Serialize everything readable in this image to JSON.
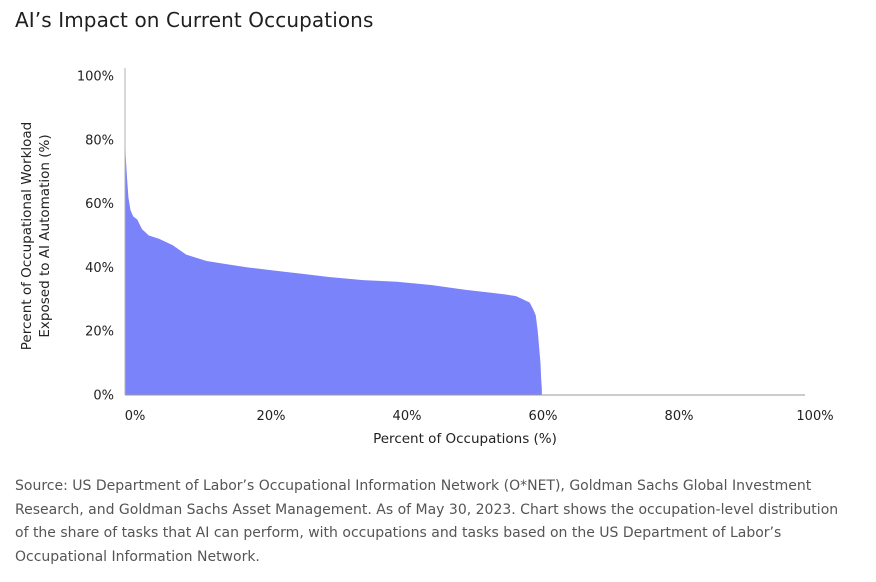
{
  "title": "AI’s Impact on Current Occupations",
  "source": "Source: US Department of Labor’s Occupational Information Network (O*NET), Goldman Sachs Global Investment Research, and Goldman Sachs Asset Management. As of May 30, 2023. Chart shows the occupation-level distribution of the share of tasks that AI can perform, with occupations and tasks based on the US Department of Labor’s Occupational Information Network.",
  "chart_data": {
    "type": "area",
    "title": "AI’s Impact on Current Occupations",
    "xlabel": "Percent of Occupations (%)",
    "ylabel_lines": [
      "Percent of Occupational Workload",
      "Exposed to AI Automation (%)"
    ],
    "xlim": [
      0,
      100
    ],
    "ylim": [
      0,
      100
    ],
    "x_ticks": [
      0,
      20,
      40,
      60,
      80,
      100
    ],
    "y_ticks": [
      0,
      20,
      40,
      60,
      80,
      100
    ],
    "x_tick_labels": [
      "0%",
      "20%",
      "40%",
      "60%",
      "80%",
      "100%"
    ],
    "y_tick_labels": [
      "0%",
      "20%",
      "40%",
      "60%",
      "80%",
      "100%"
    ],
    "grid": false,
    "legend": "none",
    "color": "#7b83fb",
    "series": [
      {
        "x": [
          0,
          0.1,
          0.3,
          0.5,
          0.8,
          1.2,
          1.8,
          2.5,
          3.5,
          5,
          7,
          9,
          12,
          15,
          18,
          22,
          26,
          30,
          35,
          40,
          45,
          50,
          54,
          56,
          57.5,
          58.5,
          59.5,
          60.0,
          60.4,
          60.7,
          60.9,
          61.1,
          61.2,
          61.3,
          61.3
        ],
        "y": [
          85,
          75,
          68,
          62,
          58,
          56,
          55,
          52,
          50,
          49,
          47,
          44,
          42,
          41,
          40,
          39,
          38,
          37,
          36,
          35.5,
          34.5,
          33,
          32,
          31.5,
          31,
          30,
          29,
          27,
          25,
          20,
          15,
          10,
          5,
          2,
          0
        ]
      }
    ]
  }
}
